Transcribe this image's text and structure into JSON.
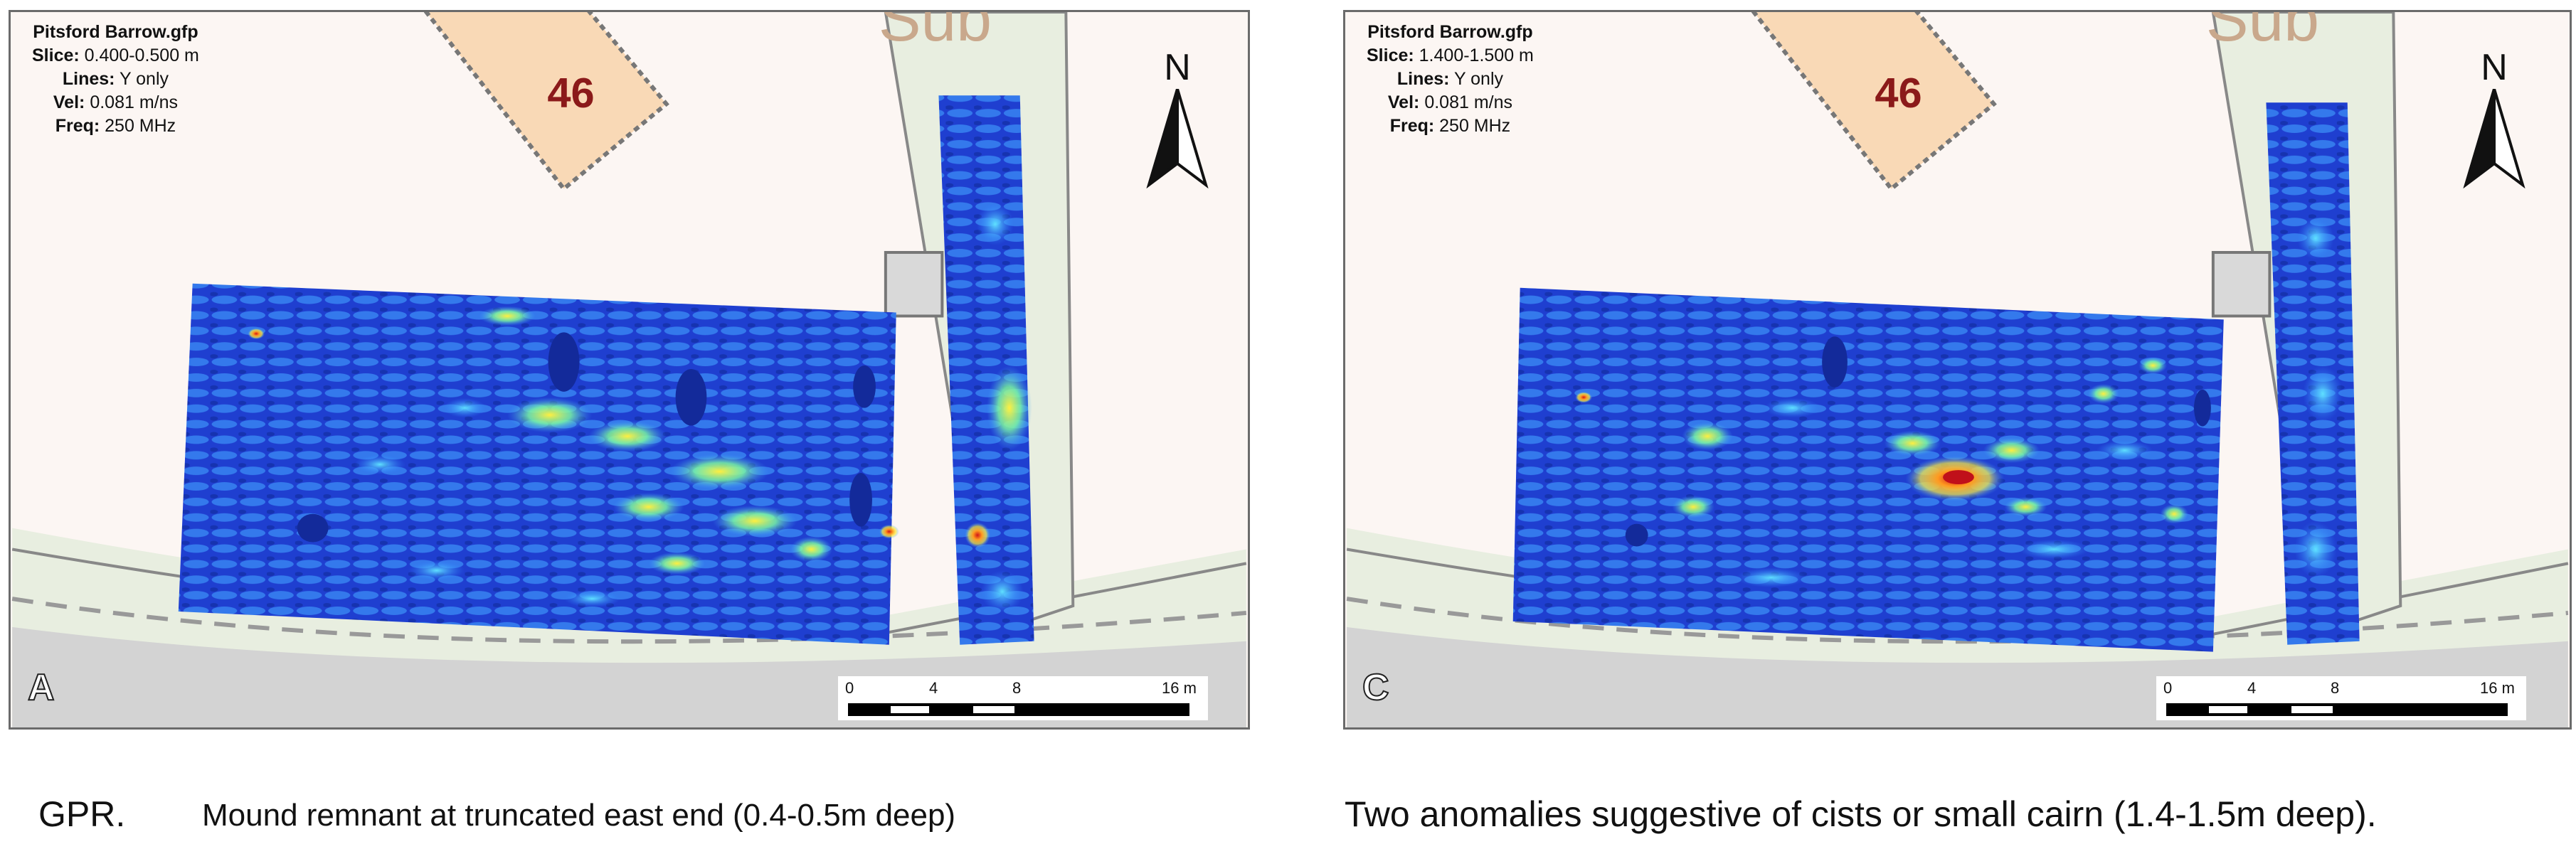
{
  "panels": [
    {
      "id": "A",
      "letter": "A",
      "file": "Pitsford Barrow.gfp",
      "slice_label": "Slice:",
      "slice_value": "0.400-0.500 m",
      "lines_label": "Lines:",
      "lines_value": "Y only",
      "vel_label": "Vel:",
      "vel_value": "0.081 m/ns",
      "freq_label": "Freq:",
      "freq_value": "250 MHz",
      "plot_label": "46",
      "road_label": "Sub"
    },
    {
      "id": "C",
      "letter": "C",
      "file": "Pitsford Barrow.gfp",
      "slice_label": "Slice:",
      "slice_value": "1.400-1.500 m",
      "lines_label": "Lines:",
      "lines_value": "Y only",
      "vel_label": "Vel:",
      "vel_value": "0.081 m/ns",
      "freq_label": "Freq:",
      "freq_value": "250 MHz",
      "plot_label": "46",
      "road_label": "Sub"
    }
  ],
  "north_label": "N",
  "scale": {
    "ticks": [
      "0",
      "4",
      "8",
      "16 m"
    ]
  },
  "captions": {
    "left_prefix": "GPR.",
    "left_text": "Mound remnant  at truncated east end  (0.4-0.5m deep)",
    "right_text": "Two anomalies suggestive of cists or small cairn   (1.4-1.5m deep)."
  },
  "colors": {
    "map_bg": "#fcf6f3",
    "plot_fill": "#f9d9b6",
    "road": "#e8eee0",
    "gpr_low": "#1a2fb8",
    "gpr_mid": "#2fa7ff",
    "gpr_high": "#ffe02a",
    "gpr_peak": "#e0201a"
  }
}
